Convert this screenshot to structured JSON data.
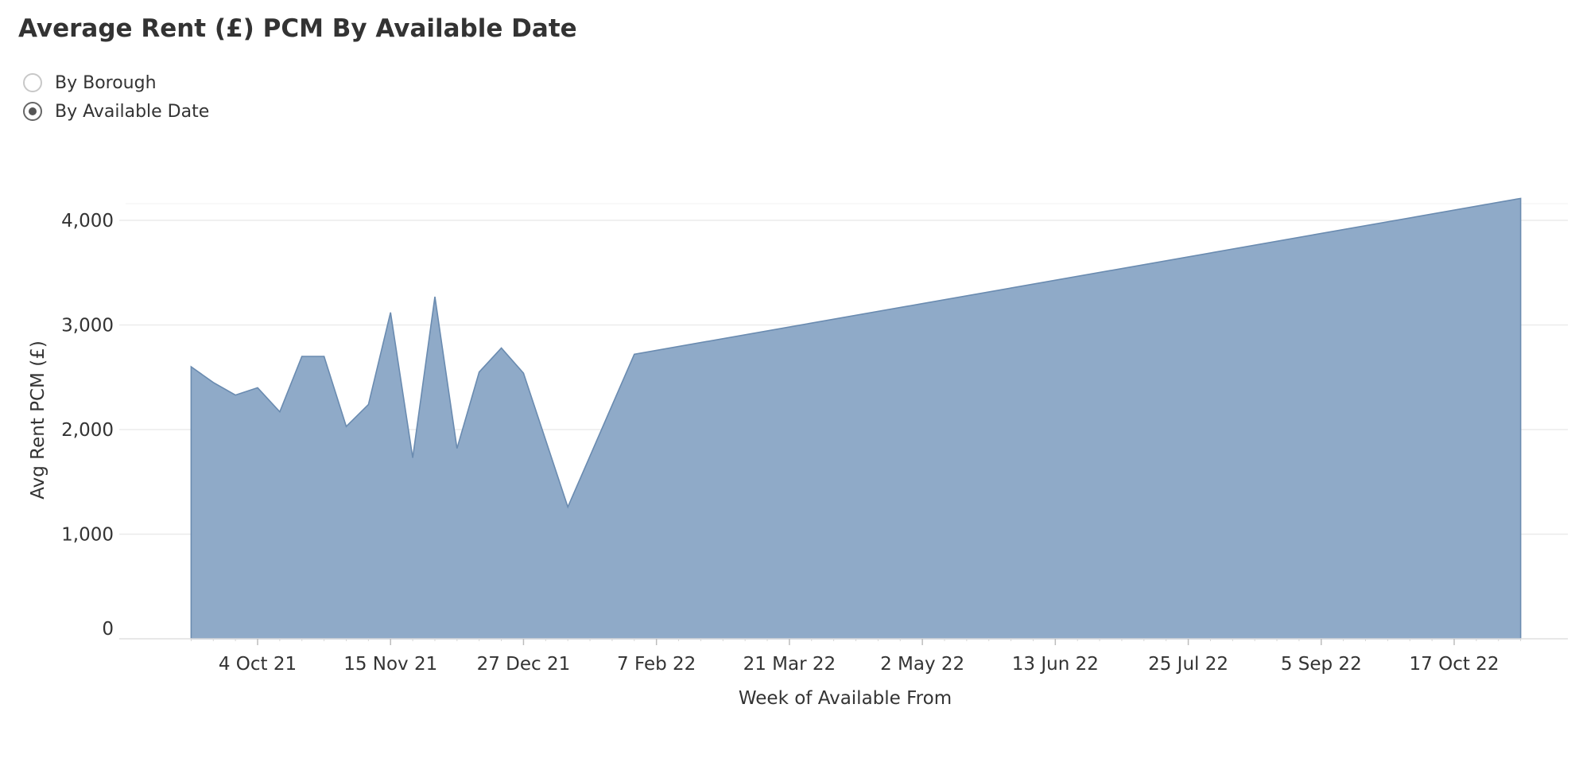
{
  "page": {
    "title": "Average Rent (£) PCM By Available Date"
  },
  "view_selector": {
    "options": [
      {
        "label": "By Borough",
        "selected": false
      },
      {
        "label": "By Available Date",
        "selected": true
      }
    ]
  },
  "chart_data": {
    "type": "area",
    "title": "Average Rent (£) PCM By Available Date",
    "xlabel": "Week of Available From",
    "ylabel": "Avg Rent PCM (£)",
    "x_tick_labels": [
      "4 Oct 21",
      "15 Nov 21",
      "27 Dec 21",
      "7 Feb 22",
      "21 Mar 22",
      "2 May 22",
      "13 Jun 22",
      "25 Jul 22",
      "5 Sep 22",
      "17 Oct 22"
    ],
    "y_tick_labels": [
      "0",
      "1,000",
      "2,000",
      "3,000",
      "4,000"
    ],
    "ylim": [
      0,
      4200
    ],
    "grid": true,
    "legend": "none",
    "fill_color": "#8faac8",
    "line_color": "#6a8bb0",
    "series": [
      {
        "x": [
          "2021-09-13",
          "2021-09-20",
          "2021-09-27",
          "2021-10-04",
          "2021-10-11",
          "2021-10-18",
          "2021-10-25",
          "2021-11-01",
          "2021-11-08",
          "2021-11-15",
          "2021-11-22",
          "2021-11-29",
          "2021-12-06",
          "2021-12-13",
          "2021-12-20",
          "2021-12-27",
          "2022-01-10",
          "2022-01-31",
          "2022-11-07"
        ],
        "values": [
          2600,
          2450,
          2330,
          2400,
          2170,
          2700,
          2700,
          2030,
          2240,
          3120,
          1730,
          3270,
          1820,
          2550,
          2780,
          2540,
          1260,
          2720,
          4210
        ]
      }
    ]
  }
}
